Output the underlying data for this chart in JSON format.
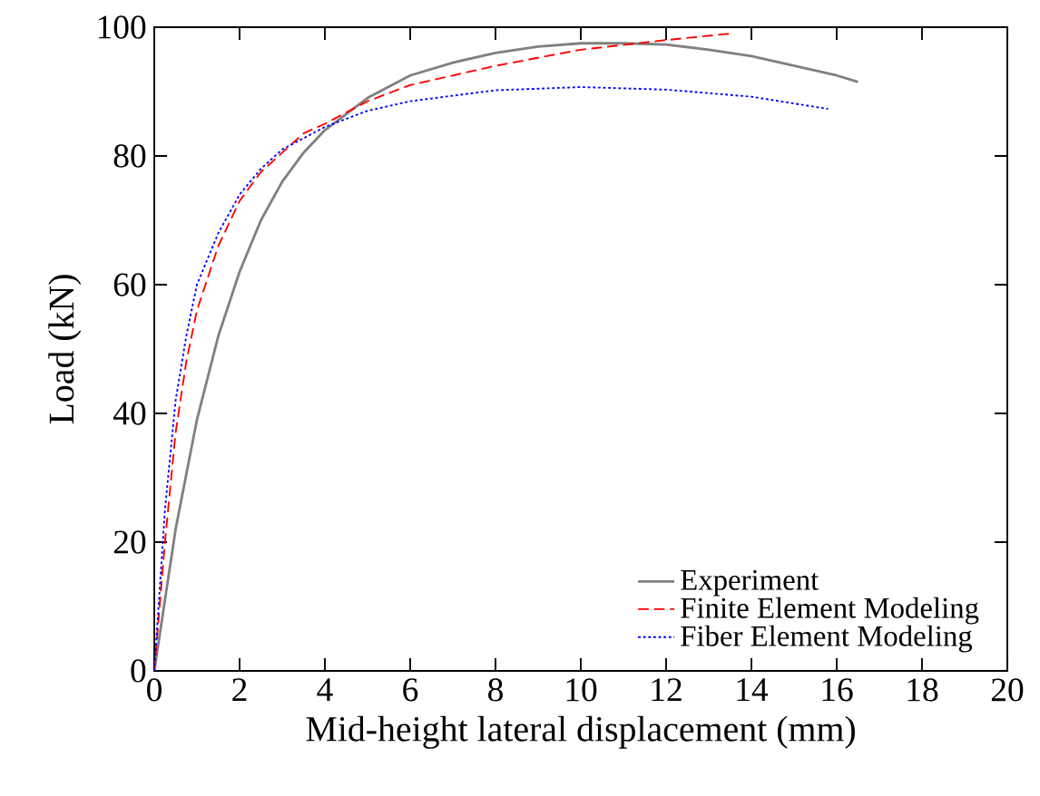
{
  "chart_data": {
    "type": "line",
    "xlabel": "Mid-height lateral displacement (mm)",
    "ylabel": "Load (kN)",
    "xlim": [
      0,
      20
    ],
    "ylim": [
      0,
      100
    ],
    "xticks": [
      0,
      2,
      4,
      6,
      8,
      10,
      12,
      14,
      16,
      18,
      20
    ],
    "yticks": [
      0,
      20,
      40,
      60,
      80,
      100
    ],
    "grid": false,
    "legend": "bottom right",
    "series": [
      {
        "name": "Experiment",
        "color": "#808080",
        "line_style": "solid",
        "x": [
          0,
          0.5,
          1,
          1.5,
          2,
          2.5,
          3,
          3.5,
          4,
          5,
          6,
          7,
          8,
          9,
          10,
          11,
          12,
          13,
          14,
          15,
          16,
          16.5
        ],
        "values": [
          0,
          22,
          39,
          52,
          62,
          70,
          76,
          80.5,
          84,
          89,
          92.5,
          94.5,
          96,
          97,
          97.5,
          97.5,
          97.3,
          96.5,
          95.5,
          94,
          92.5,
          91.5
        ]
      },
      {
        "name": "Finite Element Modeling",
        "color": "#ff0000",
        "line_style": "dashed",
        "x": [
          0,
          0.25,
          0.5,
          0.75,
          1,
          1.5,
          2,
          2.5,
          3,
          3.5,
          4,
          5,
          6,
          8,
          10,
          12,
          13.5
        ],
        "values": [
          0,
          20,
          37,
          48,
          56,
          66,
          73,
          77.5,
          80.5,
          83.5,
          85,
          88.5,
          91,
          94,
          96.5,
          98,
          99
        ]
      },
      {
        "name": "Fiber Element Modeling",
        "color": "#0000ff",
        "line_style": "dotted",
        "x": [
          0,
          0.25,
          0.5,
          0.75,
          1,
          1.5,
          2,
          2.5,
          3,
          4,
          5,
          6,
          8,
          10,
          12,
          14,
          15.8
        ],
        "values": [
          0,
          25,
          42,
          52,
          60,
          68,
          74,
          78,
          81,
          84.5,
          87,
          88.5,
          90.2,
          90.7,
          90.3,
          89.2,
          87.3
        ]
      }
    ]
  }
}
